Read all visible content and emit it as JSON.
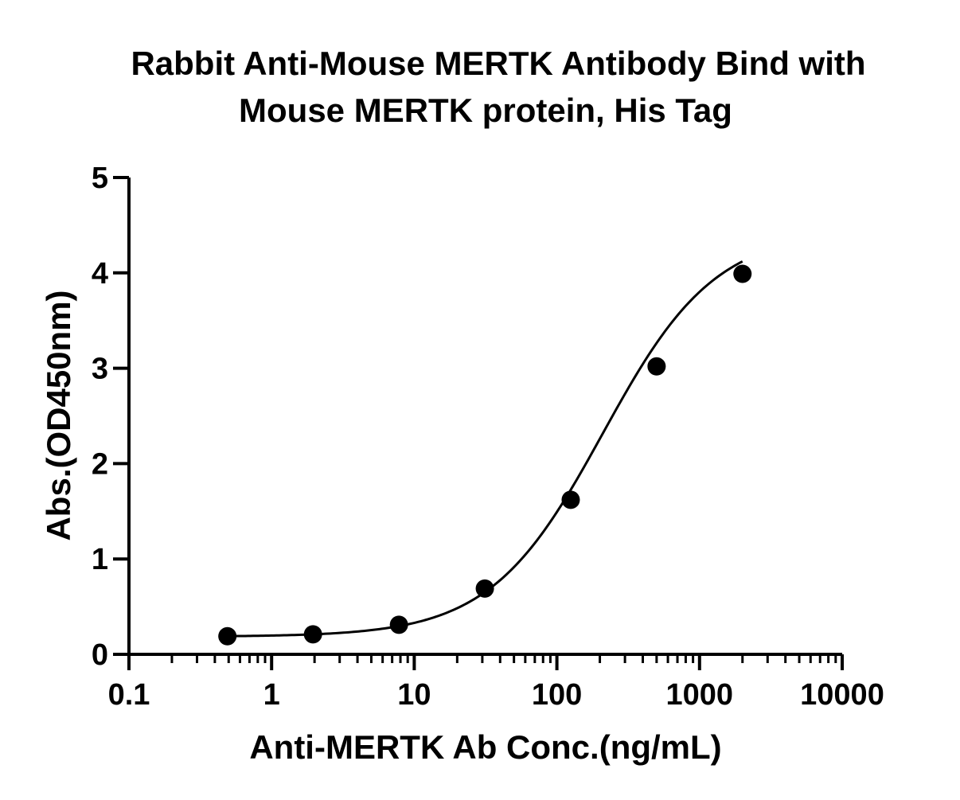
{
  "chart_data": {
    "type": "scatter",
    "title_lines": [
      "Rabbit Anti-Mouse MERTK Antibody Bind with",
      "Mouse MERTK protein, His Tag"
    ],
    "xlabel": "Anti-MERTK Ab Conc.(ng/mL)",
    "ylabel": "Abs.(OD450nm)",
    "x_scale": "log",
    "xlim": [
      0.1,
      10000
    ],
    "ylim": [
      0,
      5
    ],
    "x_ticks": [
      "0.1",
      "1",
      "10",
      "100",
      "1000",
      "10000"
    ],
    "y_ticks": [
      "0",
      "1",
      "2",
      "3",
      "4",
      "5"
    ],
    "grid": false,
    "legend": "none",
    "series": [
      {
        "x": [
          0.49,
          1.95,
          7.81,
          31.25,
          125,
          500,
          2000
        ],
        "y": [
          0.19,
          0.21,
          0.31,
          0.69,
          1.62,
          3.02,
          3.99
        ],
        "color": "#000000",
        "marker": "circle",
        "fit": "4PL curve"
      }
    ]
  }
}
